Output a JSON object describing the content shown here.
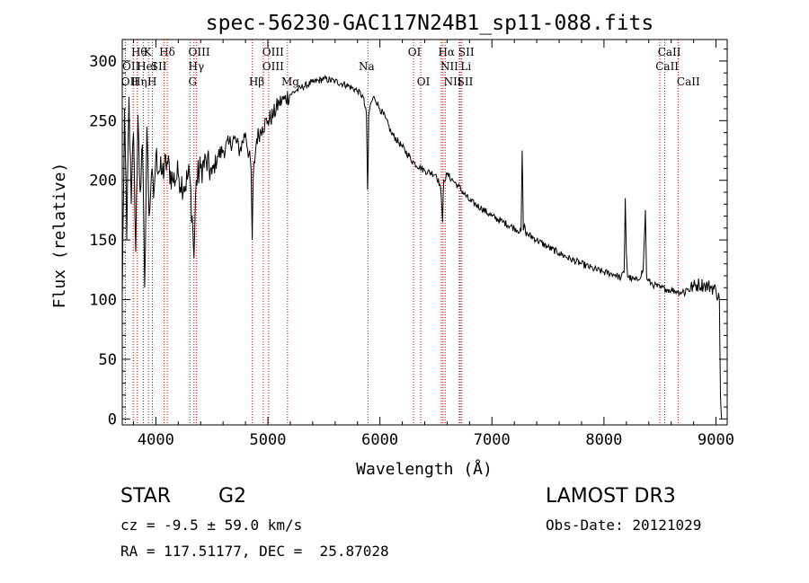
{
  "chart_data": {
    "type": "line",
    "title": "spec-56230-GAC117N24B1_sp11-088.fits",
    "xlabel": "Wavelength (Å)",
    "ylabel": "Flux (relative)",
    "xlim": [
      3700,
      9100
    ],
    "ylim": [
      -5,
      318
    ],
    "x_ticks": [
      4000,
      5000,
      6000,
      7000,
      8000,
      9000
    ],
    "y_ticks": [
      0,
      50,
      100,
      150,
      200,
      250,
      300
    ],
    "series": [
      {
        "name": "flux",
        "x": [
          3700,
          3720,
          3740,
          3760,
          3780,
          3800,
          3820,
          3840,
          3860,
          3880,
          3900,
          3920,
          3940,
          3960,
          3980,
          4000,
          4050,
          4100,
          4150,
          4200,
          4250,
          4300,
          4330,
          4340,
          4360,
          4400,
          4450,
          4500,
          4550,
          4600,
          4650,
          4700,
          4750,
          4800,
          4850,
          4860,
          4870,
          4900,
          4950,
          5000,
          5050,
          5100,
          5150,
          5200,
          5250,
          5300,
          5400,
          5500,
          5600,
          5700,
          5800,
          5850,
          5880,
          5890,
          5895,
          5900,
          5920,
          5950,
          6000,
          6050,
          6100,
          6200,
          6300,
          6400,
          6500,
          6540,
          6560,
          6565,
          6570,
          6600,
          6650,
          6700,
          6800,
          6900,
          7000,
          7100,
          7200,
          7260,
          7270,
          7280,
          7290,
          7300,
          7400,
          7500,
          7600,
          7700,
          7800,
          7900,
          8000,
          8100,
          8150,
          8180,
          8190,
          8200,
          8210,
          8250,
          8300,
          8350,
          8370,
          8380,
          8390,
          8420,
          8450,
          8500,
          8550,
          8600,
          8650,
          8700,
          8750,
          8800,
          8850,
          8900,
          8950,
          9000,
          9030,
          9040,
          9045,
          9050
        ],
        "y": [
          100,
          260,
          150,
          270,
          180,
          240,
          140,
          255,
          190,
          230,
          110,
          245,
          170,
          205,
          185,
          220,
          205,
          215,
          200,
          205,
          195,
          205,
          160,
          135,
          200,
          210,
          215,
          205,
          220,
          225,
          230,
          235,
          225,
          240,
          210,
          150,
          205,
          235,
          245,
          250,
          255,
          265,
          268,
          272,
          275,
          278,
          282,
          285,
          283,
          280,
          275,
          270,
          255,
          192,
          215,
          255,
          265,
          270,
          260,
          252,
          240,
          228,
          215,
          208,
          205,
          195,
          165,
          190,
          200,
          205,
          200,
          195,
          183,
          177,
          170,
          165,
          160,
          157,
          225,
          158,
          163,
          156,
          150,
          144,
          139,
          134,
          130,
          126,
          123,
          121,
          118,
          123,
          185,
          140,
          120,
          117,
          116,
          125,
          175,
          120,
          116,
          114,
          112,
          110,
          109,
          108,
          107,
          106,
          109,
          111,
          113,
          112,
          111,
          108,
          100,
          20,
          8,
          0
        ]
      }
    ],
    "line_markers": [
      {
        "name": "OII",
        "x": 3727
      },
      {
        "name": "Hθ",
        "x": 3798
      },
      {
        "name": "Hη",
        "x": 3835
      },
      {
        "name": "HeI",
        "x": 3889
      },
      {
        "name": "K",
        "x": 3934
      },
      {
        "name": "H",
        "x": 3969
      },
      {
        "name": "SII",
        "x": 4072
      },
      {
        "name": "Hδ",
        "x": 4102
      },
      {
        "name": "G",
        "x": 4304
      },
      {
        "name": "Hγ",
        "x": 4340
      },
      {
        "name": "OIII",
        "x": 4363
      },
      {
        "name": "Hβ",
        "x": 4861
      },
      {
        "name": "OIII",
        "x": 4959
      },
      {
        "name": "OIII",
        "x": 5007
      },
      {
        "name": "Mg",
        "x": 5175
      },
      {
        "name": "Na",
        "x": 5893
      },
      {
        "name": "OI",
        "x": 6300
      },
      {
        "name": "OI",
        "x": 6364
      },
      {
        "name": "NII",
        "x": 6548
      },
      {
        "name": "Hα",
        "x": 6563
      },
      {
        "name": "NII",
        "x": 6583
      },
      {
        "name": "Li",
        "x": 6708
      },
      {
        "name": "SII",
        "x": 6717
      },
      {
        "name": "SII",
        "x": 6731
      },
      {
        "name": "CaII",
        "x": 8498
      },
      {
        "name": "CaII",
        "x": 8542
      },
      {
        "name": "CaII",
        "x": 8662
      }
    ],
    "marker_labels": [
      {
        "text": "Hθ",
        "x": 3780,
        "row": 0
      },
      {
        "text": "K",
        "x": 3890,
        "row": 0
      },
      {
        "text": "Hδ",
        "x": 4030,
        "row": 0
      },
      {
        "text": "OIII",
        "x": 4290,
        "row": 0
      },
      {
        "text": "OIII",
        "x": 4950,
        "row": 0
      },
      {
        "text": "OI",
        "x": 6250,
        "row": 0
      },
      {
        "text": "Hα",
        "x": 6520,
        "row": 0
      },
      {
        "text": "SII",
        "x": 6700,
        "row": 0
      },
      {
        "text": "CaII",
        "x": 8480,
        "row": 0
      },
      {
        "text": "OII",
        "x": 3700,
        "row": 1
      },
      {
        "text": "HeI",
        "x": 3830,
        "row": 1
      },
      {
        "text": "SII",
        "x": 3955,
        "row": 1
      },
      {
        "text": "Hγ",
        "x": 4290,
        "row": 1
      },
      {
        "text": "OIII",
        "x": 4950,
        "row": 1
      },
      {
        "text": "Na",
        "x": 5810,
        "row": 1
      },
      {
        "text": "NII",
        "x": 6540,
        "row": 1
      },
      {
        "text": "Li",
        "x": 6720,
        "row": 1
      },
      {
        "text": "CaII",
        "x": 8460,
        "row": 1
      },
      {
        "text": "OII",
        "x": 3690,
        "row": 2
      },
      {
        "text": "Hη",
        "x": 3780,
        "row": 2
      },
      {
        "text": "H",
        "x": 3925,
        "row": 2
      },
      {
        "text": "G",
        "x": 4290,
        "row": 2
      },
      {
        "text": "Hβ",
        "x": 4830,
        "row": 2
      },
      {
        "text": "Mg",
        "x": 5120,
        "row": 2
      },
      {
        "text": "OI",
        "x": 6330,
        "row": 2
      },
      {
        "text": "NII",
        "x": 6570,
        "row": 2
      },
      {
        "text": "SII",
        "x": 6690,
        "row": 2
      },
      {
        "text": "CaII",
        "x": 8650,
        "row": 2
      }
    ]
  },
  "info": {
    "object_class": "STAR",
    "subclass": "G2",
    "survey": "LAMOST DR3",
    "cz": "cz = -9.5 ± 59.0 km/s",
    "obs_date": "Obs-Date: 20121029",
    "coords": "RA = 117.51177, DEC =  25.87028"
  }
}
